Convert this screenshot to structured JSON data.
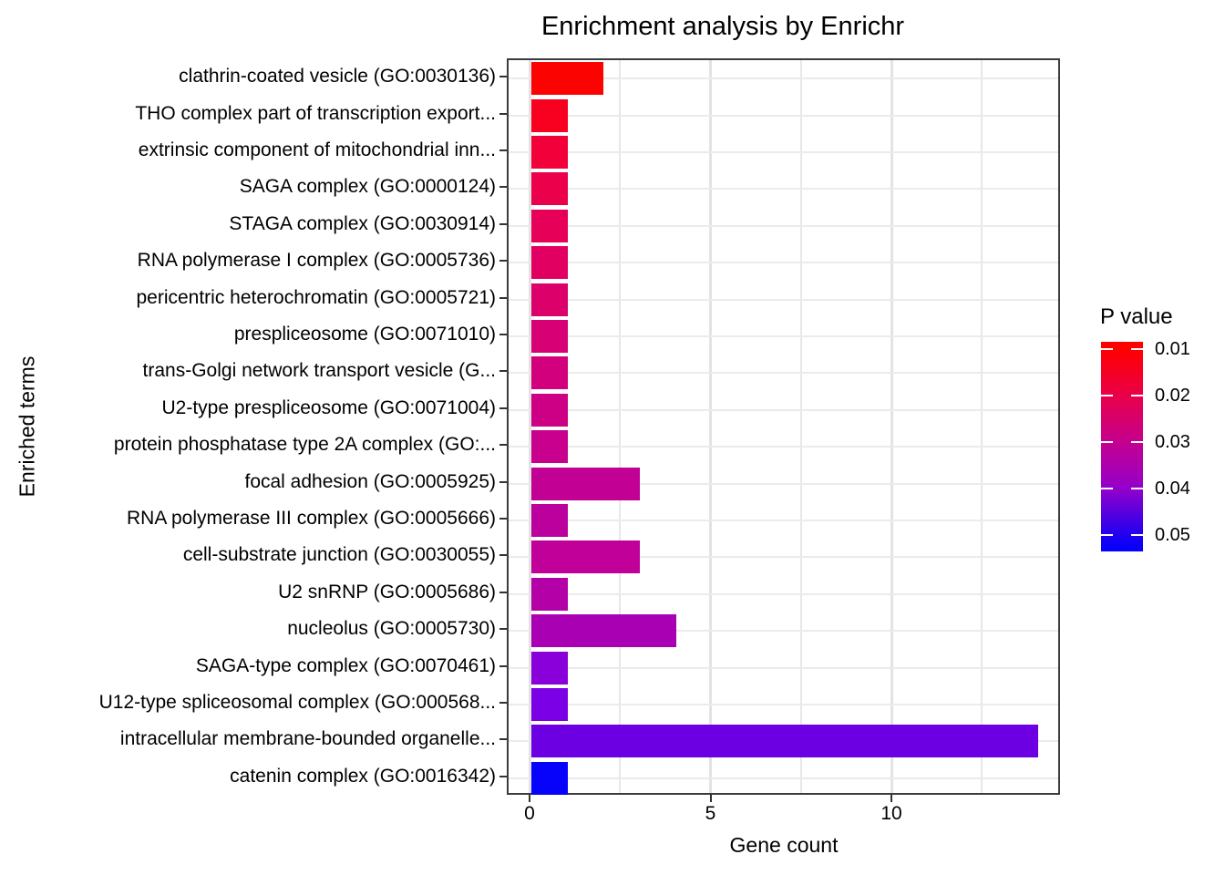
{
  "title": "Enrichment analysis by Enrichr",
  "x_axis": {
    "label": "Gene count"
  },
  "y_axis": {
    "label": "Enriched terms"
  },
  "legend": {
    "title": "P value",
    "ticks": [
      "0.01",
      "0.02",
      "0.03",
      "0.04",
      "0.05"
    ],
    "top_color": "#ff0000",
    "bottom_color": "#0000ff"
  },
  "chart_data": {
    "type": "bar",
    "orientation": "horizontal",
    "title": "Enrichment analysis by Enrichr",
    "xlabel": "Gene count",
    "ylabel": "Enriched terms",
    "xlim": [
      -0.65,
      14.6
    ],
    "x_ticks": [
      0,
      5,
      10
    ],
    "x_gridlines_major": [
      0,
      5,
      10
    ],
    "x_gridlines_minor": [
      2.5,
      7.5,
      12.5
    ],
    "grid": true,
    "legend_position": "right",
    "color_scale": {
      "label": "P value",
      "tick_values": [
        0.01,
        0.02,
        0.03,
        0.04,
        0.05
      ],
      "low_value_color": "#ff0000",
      "high_value_color": "#0000ff"
    },
    "categories": [
      "clathrin-coated vesicle (GO:0030136)",
      "THO complex part of transcription export...",
      "extrinsic component of mitochondrial inn...",
      "SAGA complex (GO:0000124)",
      "STAGA complex (GO:0030914)",
      "RNA polymerase I complex (GO:0005736)",
      "pericentric heterochromatin (GO:0005721)",
      "prespliceosome (GO:0071010)",
      "trans-Golgi network transport vesicle (G...",
      "U2-type prespliceosome (GO:0071004)",
      "protein phosphatase type 2A complex (GO:...",
      "focal adhesion (GO:0005925)",
      "RNA polymerase III complex (GO:0005666)",
      "cell-substrate junction (GO:0030055)",
      "U2 snRNP (GO:0005686)",
      "nucleolus (GO:0005730)",
      "SAGA-type complex (GO:0070461)",
      "U12-type spliceosomal complex (GO:000568...",
      "intracellular membrane-bounded organelle...",
      "catenin complex (GO:0016342)"
    ],
    "values": [
      2,
      1,
      1,
      1,
      1,
      1,
      1,
      1,
      1,
      1,
      1,
      3,
      1,
      3,
      1,
      4,
      1,
      1,
      14,
      1
    ],
    "bar_colors": [
      "#fb0301",
      "#f8001f",
      "#f20039",
      "#eb004b",
      "#e60058",
      "#e10062",
      "#dc006b",
      "#d70074",
      "#d2007d",
      "#cd0085",
      "#c8008d",
      "#c30094",
      "#bc009d",
      "#c00098",
      "#b400a7",
      "#aa00b4",
      "#8900da",
      "#7b00e5",
      "#6c00e2",
      "#0702fa"
    ]
  }
}
